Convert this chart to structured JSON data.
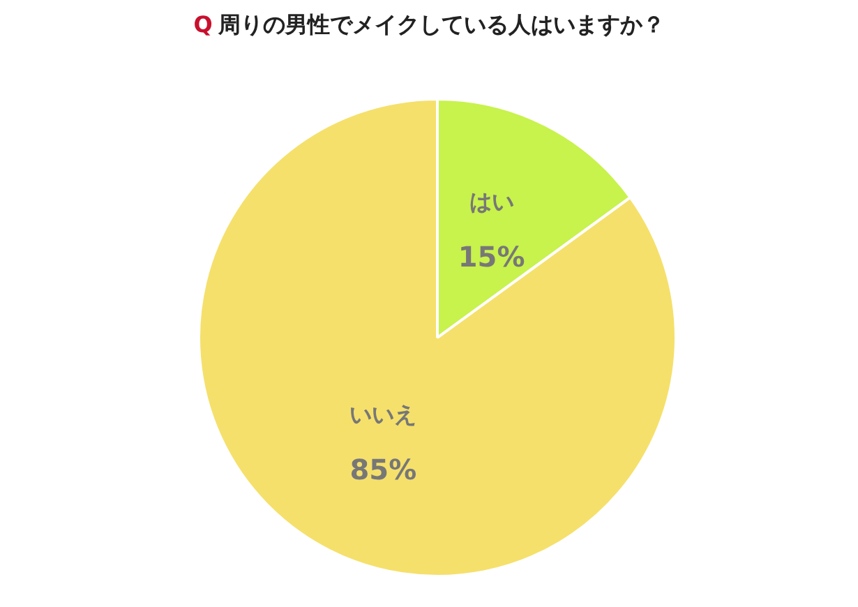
{
  "chart_data": {
    "type": "pie",
    "title": "Q 周りの男性でメイクしている人はいますか？",
    "categories": [
      "はい",
      "いいえ"
    ],
    "values": [
      15,
      85
    ],
    "value_labels": [
      "15%",
      "85%"
    ],
    "colors": [
      "#c8f24c",
      "#f5e06b"
    ],
    "legend": false
  }
}
